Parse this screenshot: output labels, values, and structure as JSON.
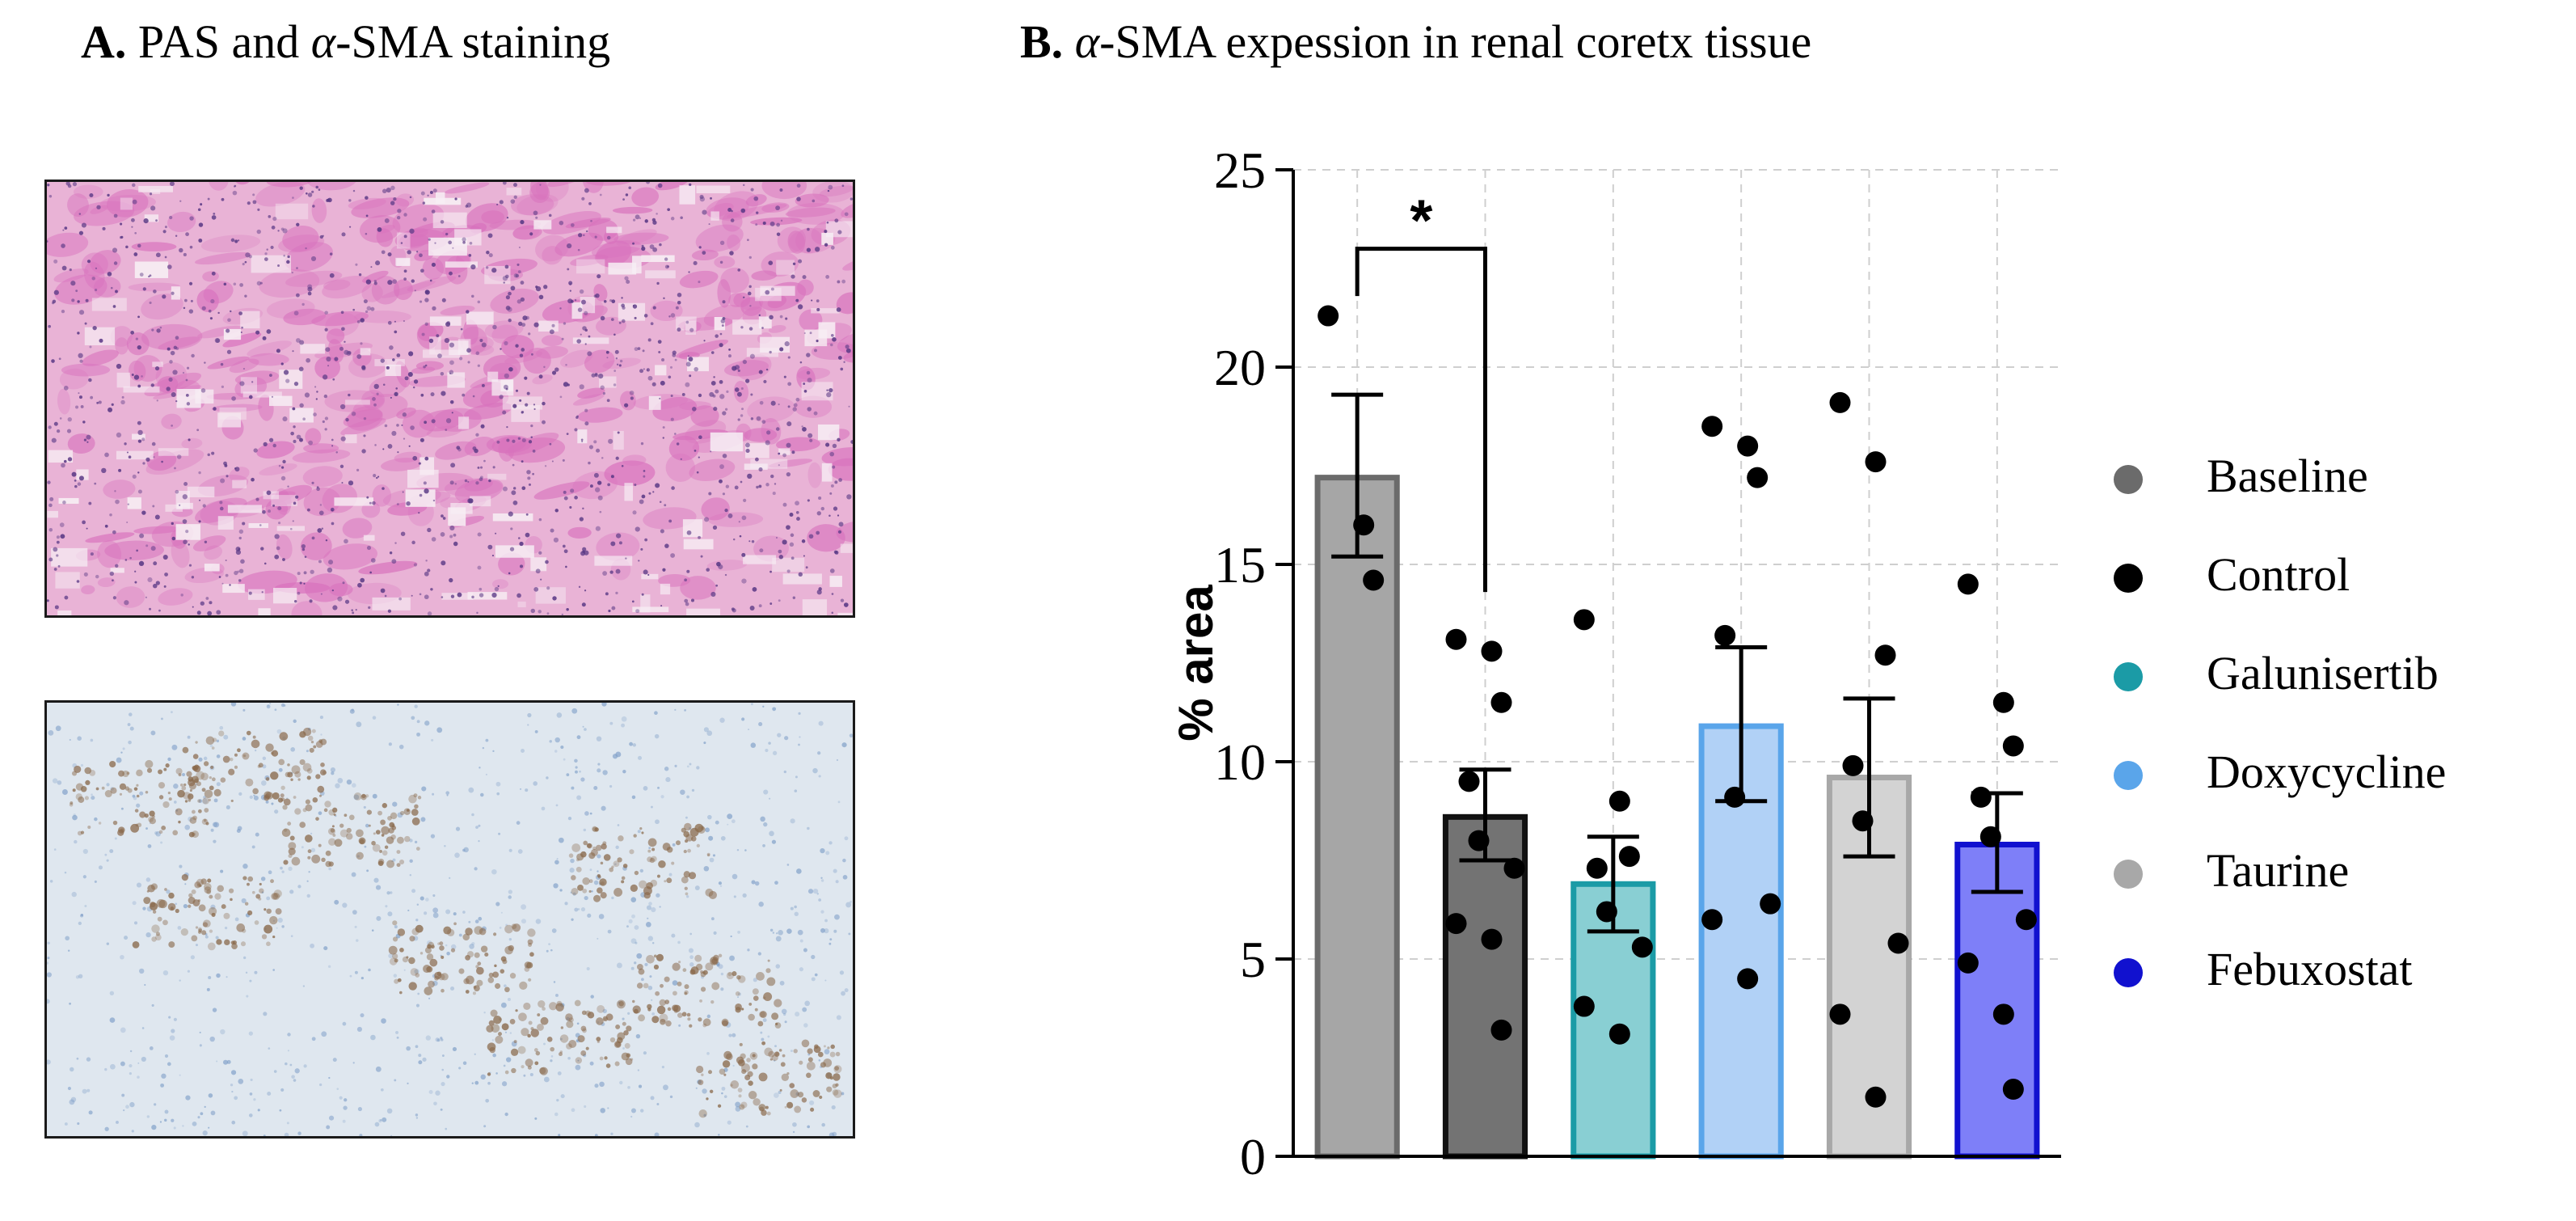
{
  "panels": {
    "a": {
      "letter": "A.",
      "pre": " PAS and ",
      "alpha": "α",
      "post": "-SMA staining"
    },
    "b": {
      "letter": "B.",
      "pre": " ",
      "alpha": "α",
      "post": "-SMA expession in renal coretx tissue"
    }
  },
  "images": {
    "pas": {
      "icon": "pas-stained-tissue-micrograph",
      "base_color": "#e9b3d6",
      "stain_color": "#d872bd",
      "nuclei_color": "#5b3a86"
    },
    "sma": {
      "icon": "alpha-sma-ihc-tissue-micrograph",
      "base_color": "#dfe7ef",
      "stain_color": "#8a6a4c",
      "counter_color": "#7f9fc8"
    }
  },
  "chart_data": {
    "type": "bar",
    "ylabel": "% area",
    "ylim": [
      0,
      25
    ],
    "yticks": [
      0,
      5,
      10,
      15,
      20,
      25
    ],
    "grid": true,
    "legend_position": "right",
    "categories": [
      "Baseline",
      "Control",
      "Galunisertib",
      "Doxycycline",
      "Taurine",
      "Febuxostat"
    ],
    "bars": [
      {
        "name": "Baseline",
        "mean": 17.2,
        "sem_low": 15.2,
        "sem_high": 19.3,
        "fill": "#a6a6a6",
        "stroke": "#6b6b6b",
        "legend_color": "#6b6b6b",
        "points": [
          21.3,
          16.0,
          14.6
        ]
      },
      {
        "name": "Control",
        "mean": 8.6,
        "sem_low": 7.5,
        "sem_high": 9.8,
        "fill": "#737373",
        "stroke": "#111111",
        "legend_color": "#000000",
        "points": [
          13.1,
          12.8,
          11.5,
          9.5,
          8.0,
          7.3,
          5.9,
          5.5,
          3.2
        ]
      },
      {
        "name": "Galunisertib",
        "mean": 6.9,
        "sem_low": 5.7,
        "sem_high": 8.1,
        "fill": "#89cfd3",
        "stroke": "#1b9ba6",
        "legend_color": "#1b9ba6",
        "points": [
          13.6,
          9.0,
          7.6,
          7.3,
          6.2,
          5.3,
          3.8,
          3.1
        ]
      },
      {
        "name": "Doxycycline",
        "mean": 10.9,
        "sem_low": 9.0,
        "sem_high": 12.9,
        "fill": "#b1d1f6",
        "stroke": "#5aa5ea",
        "legend_color": "#5aa5ea",
        "points": [
          18.5,
          18.0,
          17.2,
          13.2,
          9.1,
          6.4,
          6.0,
          4.5
        ]
      },
      {
        "name": "Taurine",
        "mean": 9.6,
        "sem_low": 7.6,
        "sem_high": 11.6,
        "fill": "#d3d3d3",
        "stroke": "#a8a8a8",
        "legend_color": "#a8a8a8",
        "points": [
          19.1,
          17.6,
          12.7,
          9.9,
          8.5,
          5.4,
          3.6,
          1.5
        ]
      },
      {
        "name": "Febuxostat",
        "mean": 7.9,
        "sem_low": 6.7,
        "sem_high": 9.2,
        "fill": "#7e7ff8",
        "stroke": "#1111cf",
        "legend_color": "#1111cf",
        "points": [
          14.5,
          11.5,
          10.4,
          9.1,
          8.1,
          6.0,
          4.9,
          3.6,
          1.7
        ]
      }
    ],
    "annotations": [
      {
        "from": "Baseline",
        "to": "Control",
        "label": "*"
      }
    ]
  }
}
